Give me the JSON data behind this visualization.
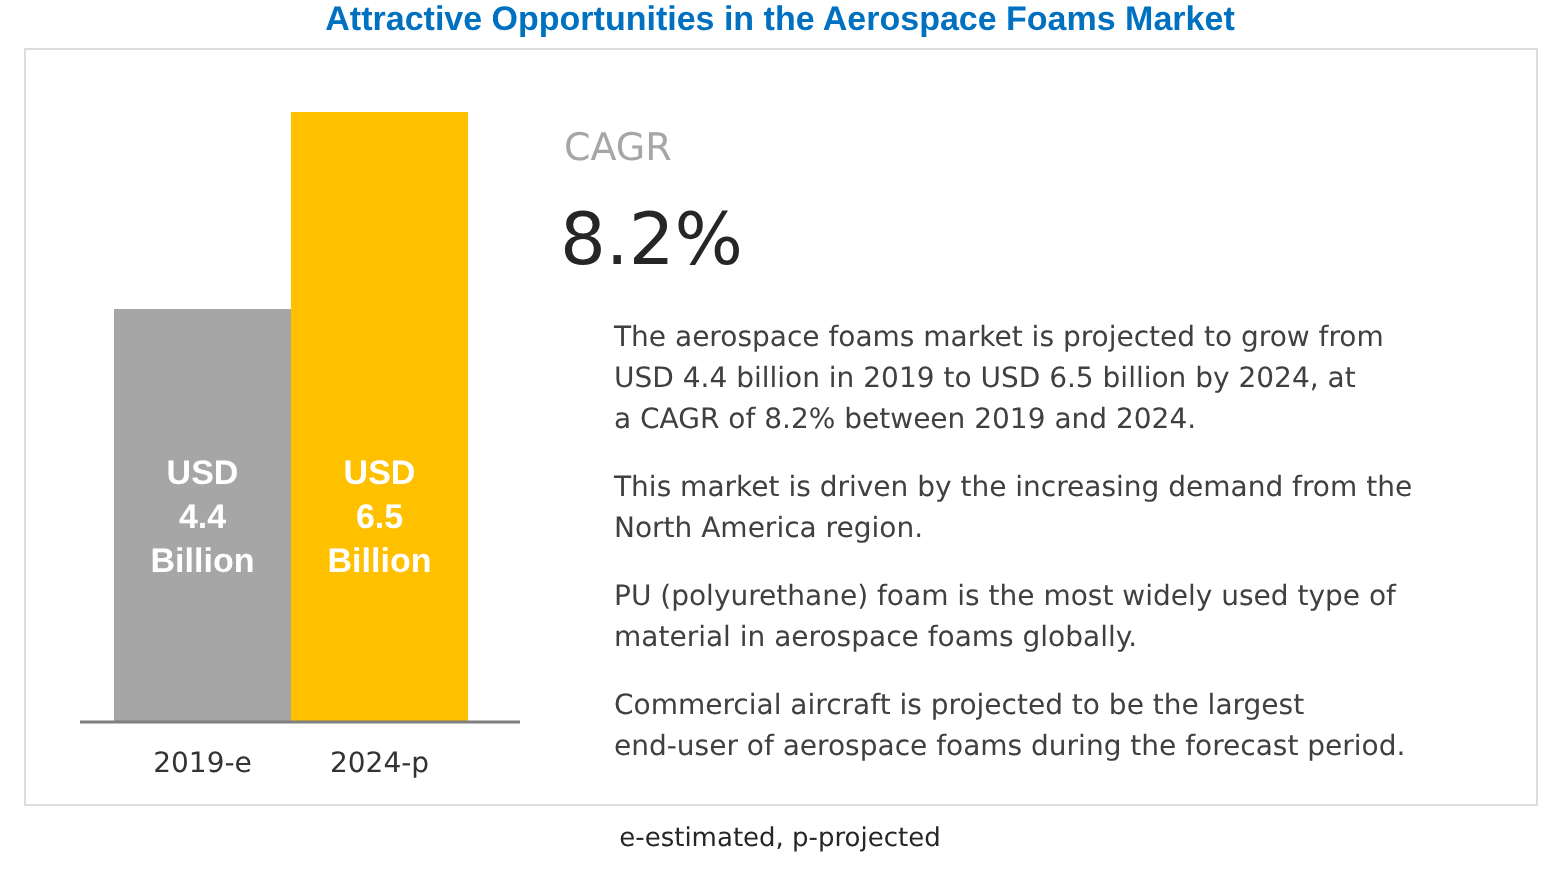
{
  "chart_data": {
    "type": "bar",
    "title": "Attractive Opportunities in the Aerospace Foams Market",
    "categories": [
      "2019-e",
      "2024-p"
    ],
    "values": [
      4.4,
      6.5
    ],
    "colors": [
      "#a6a6a6",
      "#ffc000"
    ],
    "value_labels": [
      "USD 4.4 Billion",
      "USD 6.5 Billion"
    ],
    "annotations": [
      "CAGR",
      "8.2%",
      "The aerospace foams market is projected to grow from USD 4.4 billion in 2019 to USD 6.5 billion by 2024, at a CAGR of 8.2% between 2019 and 2024.",
      "This market is driven by the increasing demand from the North America region.",
      "PU (polyurethane) foam is the most widely used type of material in aerospace foams globally.",
      "Commercial aircraft is projected to be the largest end-user of aerospace foams during the forecast period.",
      "e-estimated, p-projected"
    ]
  }
}
